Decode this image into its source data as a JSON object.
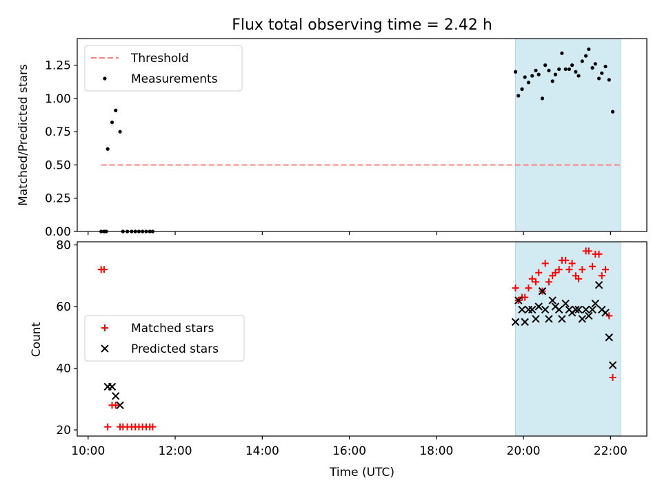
{
  "title": "Flux total observing time = 2.42 h",
  "colors": {
    "threshold": "#ff7f7f",
    "highlight": "#add8e6",
    "matched": "#ff0000",
    "predicted": "#000000",
    "measurement": "#000000"
  },
  "chart_data": [
    {
      "type": "scatter",
      "ylabel": "Matched/Predicted stars",
      "xlabel": "",
      "xlim": [
        "09:45",
        "22:50"
      ],
      "ylim": [
        0,
        1.45
      ],
      "yticks": [
        0.0,
        0.25,
        0.5,
        0.75,
        1.0,
        1.25
      ],
      "ytick_labels": [
        "0.00",
        "0.25",
        "0.50",
        "0.75",
        "1.00",
        "1.25"
      ],
      "highlight_span": [
        "19:49",
        "22:14"
      ],
      "legend": {
        "placement": "upper-left",
        "entries": [
          "Threshold",
          "Measurements"
        ]
      },
      "threshold": {
        "name": "Threshold",
        "y": 0.5,
        "x_range": [
          "10:18",
          "22:14"
        ],
        "style": "dashed"
      },
      "series": [
        {
          "name": "Measurements",
          "points": [
            [
              "10:18",
              0.0
            ],
            [
              "10:22",
              0.0
            ],
            [
              "10:25",
              0.0
            ],
            [
              "10:27",
              0.62
            ],
            [
              "10:33",
              0.82
            ],
            [
              "10:38",
              0.91
            ],
            [
              "10:44",
              0.75
            ],
            [
              "10:48",
              0.0
            ],
            [
              "10:54",
              0.0
            ],
            [
              "11:00",
              0.0
            ],
            [
              "11:05",
              0.0
            ],
            [
              "11:10",
              0.0
            ],
            [
              "11:15",
              0.0
            ],
            [
              "11:20",
              0.0
            ],
            [
              "11:25",
              0.0
            ],
            [
              "11:29",
              0.0
            ],
            [
              "19:49",
              1.2
            ],
            [
              "19:53",
              1.02
            ],
            [
              "19:58",
              1.07
            ],
            [
              "20:02",
              1.16
            ],
            [
              "20:07",
              1.12
            ],
            [
              "20:12",
              1.17
            ],
            [
              "20:17",
              1.21
            ],
            [
              "20:21",
              1.18
            ],
            [
              "20:26",
              1.0
            ],
            [
              "20:30",
              1.25
            ],
            [
              "20:35",
              1.21
            ],
            [
              "20:40",
              1.13
            ],
            [
              "20:44",
              1.18
            ],
            [
              "20:49",
              1.22
            ],
            [
              "20:53",
              1.34
            ],
            [
              "20:58",
              1.22
            ],
            [
              "21:03",
              1.22
            ],
            [
              "21:07",
              1.25
            ],
            [
              "21:12",
              1.2
            ],
            [
              "21:16",
              1.17
            ],
            [
              "21:21",
              1.28
            ],
            [
              "21:26",
              1.32
            ],
            [
              "21:30",
              1.37
            ],
            [
              "21:35",
              1.23
            ],
            [
              "21:39",
              1.26
            ],
            [
              "21:44",
              1.15
            ],
            [
              "21:48",
              1.19
            ],
            [
              "21:53",
              1.24
            ],
            [
              "21:58",
              1.14
            ],
            [
              "22:03",
              0.9
            ]
          ]
        }
      ]
    },
    {
      "type": "scatter",
      "ylabel": "Count",
      "xlabel": "Time (UTC)",
      "xlim": [
        "09:45",
        "22:50"
      ],
      "ylim": [
        18,
        81
      ],
      "yticks": [
        20,
        40,
        60,
        80
      ],
      "xticks": [
        "10:00",
        "12:00",
        "14:00",
        "16:00",
        "18:00",
        "20:00",
        "22:00"
      ],
      "highlight_span": [
        "19:49",
        "22:14"
      ],
      "legend": {
        "placement": "center-left",
        "entries": [
          "Matched stars",
          "Predicted stars"
        ]
      },
      "series": [
        {
          "name": "Matched stars",
          "marker": "plus",
          "points": [
            [
              "10:18",
              72
            ],
            [
              "10:22",
              72
            ],
            [
              "10:27",
              21
            ],
            [
              "10:33",
              28
            ],
            [
              "10:38",
              28
            ],
            [
              "10:44",
              21
            ],
            [
              "10:48",
              21
            ],
            [
              "10:54",
              21
            ],
            [
              "11:00",
              21
            ],
            [
              "11:05",
              21
            ],
            [
              "11:10",
              21
            ],
            [
              "11:15",
              21
            ],
            [
              "11:20",
              21
            ],
            [
              "11:25",
              21
            ],
            [
              "11:29",
              21
            ],
            [
              "19:49",
              66
            ],
            [
              "19:53",
              62
            ],
            [
              "19:58",
              63
            ],
            [
              "20:02",
              63
            ],
            [
              "20:07",
              66
            ],
            [
              "20:12",
              69
            ],
            [
              "20:17",
              68
            ],
            [
              "20:21",
              71
            ],
            [
              "20:26",
              65
            ],
            [
              "20:30",
              74
            ],
            [
              "20:35",
              68
            ],
            [
              "20:40",
              70
            ],
            [
              "20:44",
              71
            ],
            [
              "20:49",
              72
            ],
            [
              "20:53",
              75
            ],
            [
              "20:58",
              75
            ],
            [
              "21:03",
              72
            ],
            [
              "21:07",
              74
            ],
            [
              "21:12",
              70
            ],
            [
              "21:16",
              69
            ],
            [
              "21:21",
              72
            ],
            [
              "21:26",
              78
            ],
            [
              "21:30",
              78
            ],
            [
              "21:35",
              73
            ],
            [
              "21:39",
              77
            ],
            [
              "21:44",
              77
            ],
            [
              "21:48",
              70
            ],
            [
              "21:53",
              72
            ],
            [
              "21:58",
              57
            ],
            [
              "22:03",
              37
            ]
          ]
        },
        {
          "name": "Predicted stars",
          "marker": "cross",
          "points": [
            [
              "10:27",
              34
            ],
            [
              "10:33",
              34
            ],
            [
              "10:38",
              31
            ],
            [
              "10:44",
              28
            ],
            [
              "19:49",
              55
            ],
            [
              "19:53",
              62
            ],
            [
              "19:58",
              59
            ],
            [
              "20:02",
              55
            ],
            [
              "20:07",
              59
            ],
            [
              "20:12",
              59
            ],
            [
              "20:17",
              56
            ],
            [
              "20:21",
              60
            ],
            [
              "20:26",
              65
            ],
            [
              "20:30",
              59
            ],
            [
              "20:35",
              56
            ],
            [
              "20:40",
              62
            ],
            [
              "20:44",
              60
            ],
            [
              "20:49",
              59
            ],
            [
              "20:53",
              56
            ],
            [
              "20:58",
              61
            ],
            [
              "21:03",
              59
            ],
            [
              "21:07",
              58
            ],
            [
              "21:12",
              59
            ],
            [
              "21:16",
              59
            ],
            [
              "21:21",
              56
            ],
            [
              "21:26",
              59
            ],
            [
              "21:30",
              57
            ],
            [
              "21:35",
              59
            ],
            [
              "21:39",
              61
            ],
            [
              "21:44",
              67
            ],
            [
              "21:48",
              59
            ],
            [
              "21:53",
              58
            ],
            [
              "21:58",
              50
            ],
            [
              "22:03",
              41
            ]
          ]
        }
      ]
    }
  ]
}
